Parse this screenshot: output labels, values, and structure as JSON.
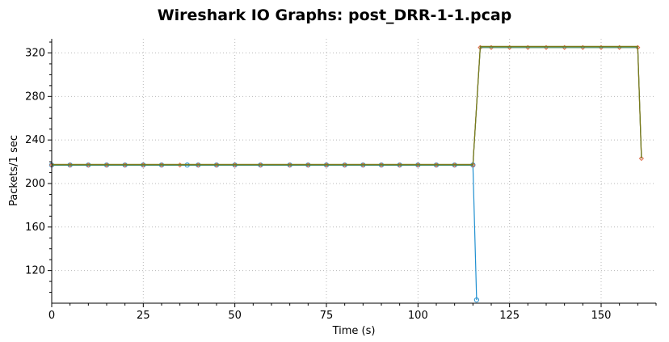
{
  "chart_data": {
    "type": "line",
    "title": "Wireshark IO Graphs: post_DRR-1-1.pcap",
    "xlabel": "Time (s)",
    "ylabel": "Packets/1 sec",
    "xlim": [
      0,
      165
    ],
    "ylim": [
      90,
      333
    ],
    "xticks": [
      0,
      25,
      50,
      75,
      100,
      125,
      150
    ],
    "yticks": [
      120,
      160,
      200,
      240,
      280,
      320
    ],
    "grid": true,
    "legend": "none",
    "colors": [
      "#1f8fd0",
      "#e06c4a",
      "#2e8b57",
      "#7a7a1a"
    ],
    "series": [
      {
        "color": "#1f8fd0",
        "marker": "circle",
        "points": [
          [
            0,
            217
          ],
          [
            5,
            217
          ],
          [
            10,
            217
          ],
          [
            15,
            217
          ],
          [
            20,
            217
          ],
          [
            25,
            217
          ],
          [
            30,
            217
          ],
          [
            37,
            217
          ],
          [
            40,
            217
          ],
          [
            45,
            217
          ],
          [
            50,
            217
          ],
          [
            57,
            217
          ],
          [
            65,
            217
          ],
          [
            70,
            217
          ],
          [
            75,
            217
          ],
          [
            80,
            217
          ],
          [
            85,
            217
          ],
          [
            90,
            217
          ],
          [
            95,
            217
          ],
          [
            100,
            217
          ],
          [
            105,
            217
          ],
          [
            110,
            217
          ],
          [
            115,
            217
          ],
          [
            116,
            93
          ]
        ]
      },
      {
        "color": "#e06c4a",
        "marker": "diamond",
        "points": [
          [
            0,
            217
          ],
          [
            5,
            217
          ],
          [
            10,
            217
          ],
          [
            15,
            217
          ],
          [
            20,
            217
          ],
          [
            25,
            217
          ],
          [
            30,
            217
          ],
          [
            35,
            217
          ],
          [
            40,
            217
          ],
          [
            45,
            217
          ],
          [
            50,
            217
          ],
          [
            57,
            217
          ],
          [
            65,
            217
          ],
          [
            70,
            217
          ],
          [
            75,
            217
          ],
          [
            80,
            217
          ],
          [
            85,
            217
          ],
          [
            90,
            217
          ],
          [
            95,
            217
          ],
          [
            100,
            217
          ],
          [
            105,
            217
          ],
          [
            110,
            217
          ],
          [
            115,
            217
          ],
          [
            117,
            325
          ],
          [
            120,
            325
          ],
          [
            125,
            325
          ],
          [
            130,
            325
          ],
          [
            135,
            325
          ],
          [
            140,
            325
          ],
          [
            145,
            325
          ],
          [
            150,
            325
          ],
          [
            155,
            325
          ],
          [
            160,
            325
          ],
          [
            161,
            223
          ]
        ]
      },
      {
        "color": "#2e8b57",
        "marker": "none",
        "points": [
          [
            0,
            217
          ],
          [
            115,
            217
          ],
          [
            117,
            325
          ],
          [
            160,
            325
          ],
          [
            161,
            223
          ]
        ]
      },
      {
        "color": "#7a7a1a",
        "marker": "none",
        "points": [
          [
            0,
            217.5
          ],
          [
            115,
            217.5
          ],
          [
            117,
            326
          ],
          [
            160,
            326
          ],
          [
            161,
            223
          ]
        ]
      }
    ]
  }
}
